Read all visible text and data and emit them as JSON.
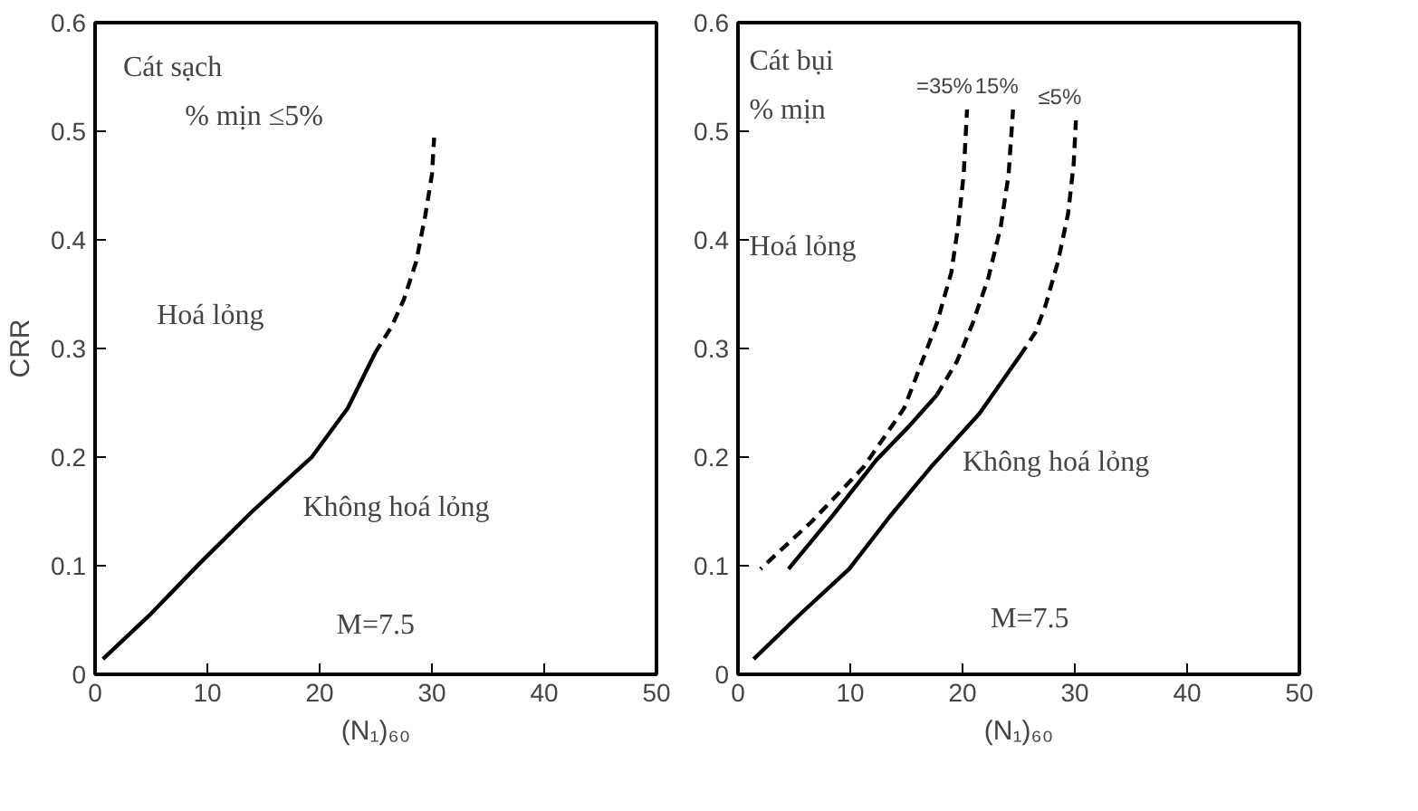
{
  "chart_data": [
    {
      "type": "line",
      "ylabel": "CRR",
      "xlabel": "(N₁)₆₀",
      "xlim": [
        0,
        50
      ],
      "ylim": [
        0,
        0.6
      ],
      "xticks": [
        0,
        10,
        20,
        30,
        40,
        50
      ],
      "yticks": [
        0,
        0.1,
        0.2,
        0.3,
        0.4,
        0.5,
        0.6
      ],
      "grid": false,
      "series": [
        {
          "color": "#000000",
          "line_style": "solid",
          "x": [
            0.7,
            5,
            9.4,
            14,
            19.3,
            22.5,
            25.0
          ],
          "values": [
            0.014,
            0.056,
            0.103,
            0.15,
            0.2,
            0.245,
            0.297
          ]
        },
        {
          "color": "#000000",
          "line_style": "dashed",
          "x": [
            25.0,
            26.4,
            27.5,
            28.6,
            29.4,
            30.0,
            30.2
          ],
          "values": [
            0.297,
            0.32,
            0.345,
            0.38,
            0.422,
            0.46,
            0.494
          ]
        }
      ],
      "annotations": [
        "Cát sạch",
        "% mịn  ≤5%",
        "Hoá lỏng",
        "Không hoá lỏng",
        "M=7.5"
      ]
    },
    {
      "type": "line",
      "xlabel": "(N₁)₆₀",
      "xlim": [
        0,
        50
      ],
      "ylim": [
        0,
        0.6
      ],
      "xticks": [
        0,
        10,
        20,
        30,
        40,
        50
      ],
      "yticks": [
        0,
        0.1,
        0.2,
        0.3,
        0.4,
        0.5,
        0.6
      ],
      "grid": false,
      "series": [
        {
          "color": "#000000",
          "line_style": "solid",
          "x": [
            1.4,
            5.5,
            9.9,
            13.5,
            17.2,
            21.5,
            25.3
          ],
          "values": [
            0.014,
            0.055,
            0.097,
            0.145,
            0.191,
            0.24,
            0.296
          ]
        },
        {
          "name": "≤5%",
          "color": "#000000",
          "line_style": "dashed",
          "x": [
            25.3,
            26.5,
            27.4,
            28.5,
            29.4,
            29.9,
            30.1
          ],
          "values": [
            0.296,
            0.315,
            0.34,
            0.38,
            0.424,
            0.47,
            0.51
          ]
        },
        {
          "color": "#000000",
          "line_style": "solid",
          "x": [
            4.5,
            8.5,
            12.3,
            15.2,
            17.7
          ],
          "values": [
            0.097,
            0.147,
            0.197,
            0.228,
            0.257
          ]
        },
        {
          "name": "15%",
          "color": "#000000",
          "line_style": "dashed",
          "x": [
            17.7,
            19.5,
            20.9,
            22.3,
            23.4,
            24.1,
            24.5
          ],
          "values": [
            0.257,
            0.288,
            0.323,
            0.365,
            0.412,
            0.46,
            0.52
          ]
        },
        {
          "name": "=35%",
          "color": "#000000",
          "line_style": "dashed",
          "x": [
            2.0,
            6.5,
            11.2,
            14.8,
            17.7,
            19.0,
            19.6,
            20.1,
            20.4
          ],
          "values": [
            0.097,
            0.14,
            0.191,
            0.245,
            0.323,
            0.37,
            0.412,
            0.46,
            0.52
          ]
        }
      ],
      "annotations": [
        "Cát bụi",
        "% mịn",
        "Hoá lỏng",
        "Không hoá lỏng",
        "M=7.5"
      ]
    }
  ]
}
